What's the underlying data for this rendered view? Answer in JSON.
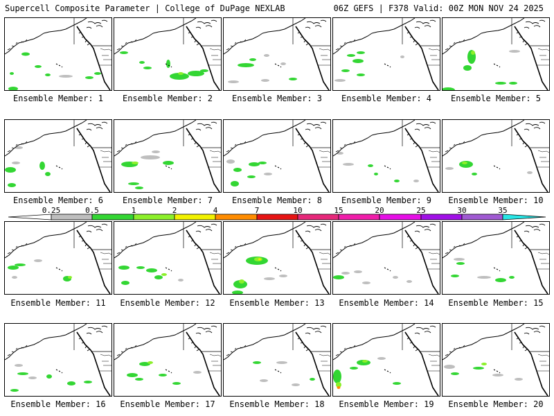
{
  "header": {
    "left": "Supercell Composite Parameter | College of DuPage NEXLAB",
    "right": "06Z GEFS | F378 Valid: 00Z MON NOV 24 2025"
  },
  "panels": [
    {
      "label": "Ensemble Member: 1"
    },
    {
      "label": "Ensemble Member: 2"
    },
    {
      "label": "Ensemble Member: 3"
    },
    {
      "label": "Ensemble Member: 4"
    },
    {
      "label": "Ensemble Member: 5"
    },
    {
      "label": "Ensemble Member: 6"
    },
    {
      "label": "Ensemble Member: 7"
    },
    {
      "label": "Ensemble Member: 8"
    },
    {
      "label": "Ensemble Member: 9"
    },
    {
      "label": "Ensemble Member: 10"
    },
    {
      "label": "Ensemble Member: 11"
    },
    {
      "label": "Ensemble Member: 12"
    },
    {
      "label": "Ensemble Member: 13"
    },
    {
      "label": "Ensemble Member: 14"
    },
    {
      "label": "Ensemble Member: 15"
    },
    {
      "label": "Ensemble Member: 16"
    },
    {
      "label": "Ensemble Member: 17"
    },
    {
      "label": "Ensemble Member: 18"
    },
    {
      "label": "Ensemble Member: 19"
    },
    {
      "label": "Ensemble Member: 20"
    }
  ],
  "colorbar": {
    "ticks": [
      "0.25",
      "0.5",
      "1",
      "2",
      "4",
      "7",
      "10",
      "15",
      "20",
      "25",
      "30",
      "35"
    ],
    "colors": [
      "#bebebe",
      "#33d633",
      "#8cf02a",
      "#f2f200",
      "#ff8c00",
      "#e61414",
      "#e6287a",
      "#f01eaa",
      "#e60fe6",
      "#a010e6",
      "#a05ad2",
      "#28e6e6"
    ]
  }
}
